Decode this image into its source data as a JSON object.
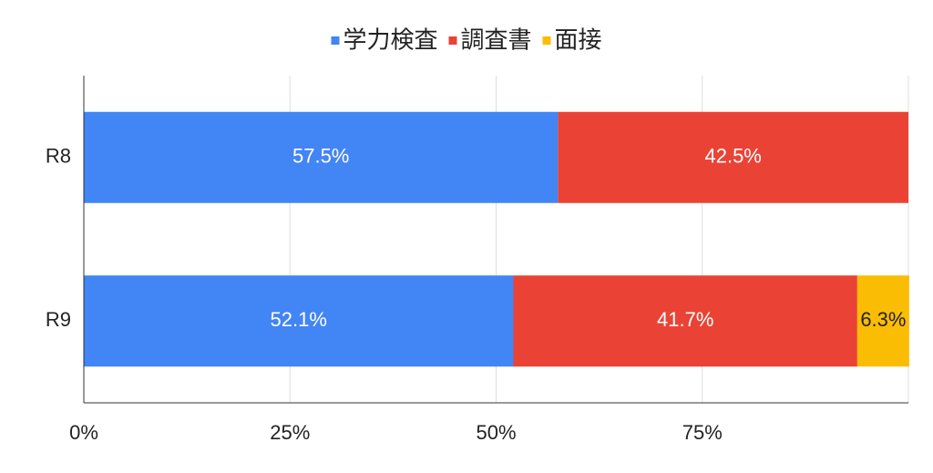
{
  "chart_data": {
    "type": "stacked-bar-horizontal",
    "categories": [
      "R8",
      "R9"
    ],
    "series": [
      {
        "name": "学力検査",
        "color": "#4285f4",
        "values": [
          57.5,
          52.1
        ],
        "value_labels": [
          "57.5%",
          "52.1%"
        ]
      },
      {
        "name": "調査書",
        "color": "#ea4335",
        "values": [
          42.5,
          41.7
        ],
        "value_labels": [
          "42.5%",
          "41.7%"
        ]
      },
      {
        "name": "面接",
        "color": "#fbbc04",
        "values": [
          null,
          6.3
        ],
        "value_labels": [
          null,
          "6.3%"
        ]
      }
    ],
    "xlim": [
      0,
      100
    ],
    "xticks": [
      {
        "value": 0,
        "label": "0%"
      },
      {
        "value": 25,
        "label": "25%"
      },
      {
        "value": 50,
        "label": "50%"
      },
      {
        "value": 75,
        "label": "75%"
      }
    ],
    "grid": true,
    "legend": "top"
  }
}
